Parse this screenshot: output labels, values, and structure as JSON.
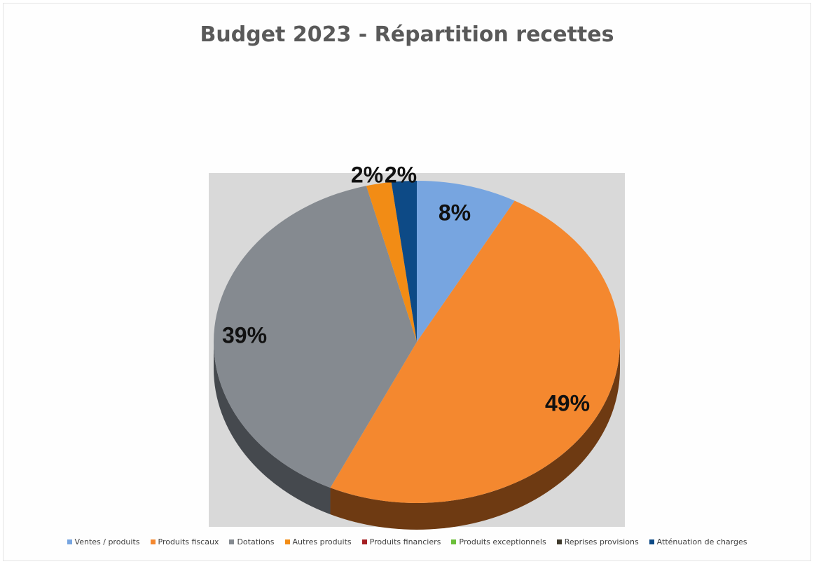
{
  "chart_data": {
    "type": "pie",
    "title": "Budget 2023 - Répartition recettes",
    "slices": [
      {
        "label": "Ventes / produits",
        "value": 8,
        "data_label": "8%",
        "color": "#77A5E0",
        "side_color": "#3F6FAF"
      },
      {
        "label": "Produits fiscaux",
        "value": 49,
        "data_label": "49%",
        "color": "#F4882F",
        "side_color": "#6E3A12"
      },
      {
        "label": "Produits financiers",
        "value": 0,
        "data_label": "",
        "color": "#A41E22",
        "side_color": "#5A1012"
      },
      {
        "label": "Produits exceptionnels",
        "value": 0,
        "data_label": "",
        "color": "#6BBF3A",
        "side_color": "#3A6E1C"
      },
      {
        "label": "Reprises provisions",
        "value": 0,
        "data_label": "",
        "color": "#3F3A2C",
        "side_color": "#221F17"
      },
      {
        "label": "Dotations",
        "value": 39,
        "data_label": "39%",
        "color": "#858A90",
        "side_color": "#45494E"
      },
      {
        "label": "Autres produits",
        "value": 2,
        "data_label": "2%",
        "color": "#F28C15",
        "side_color": "#7A4409"
      },
      {
        "label": "Atténuation de charges",
        "value": 2,
        "data_label": "2%",
        "color": "#0D4A86",
        "side_color": "#072748"
      }
    ],
    "legend": {
      "position": "bottom",
      "entries": [
        {
          "label": "Ventes / produits",
          "color": "#77A5E0"
        },
        {
          "label": "Produits fiscaux",
          "color": "#F4882F"
        },
        {
          "label": "Dotations",
          "color": "#858A90"
        },
        {
          "label": "Autres produits",
          "color": "#F28C15"
        },
        {
          "label": "Produits financiers",
          "color": "#A41E22"
        },
        {
          "label": "Produits exceptionnels",
          "color": "#6BBF3A"
        },
        {
          "label": "Reprises provisions",
          "color": "#3F3A2C"
        },
        {
          "label": "Atténuation de charges",
          "color": "#0D4A86"
        }
      ]
    },
    "plot_background": "#D9D9D9",
    "three_d": true
  }
}
